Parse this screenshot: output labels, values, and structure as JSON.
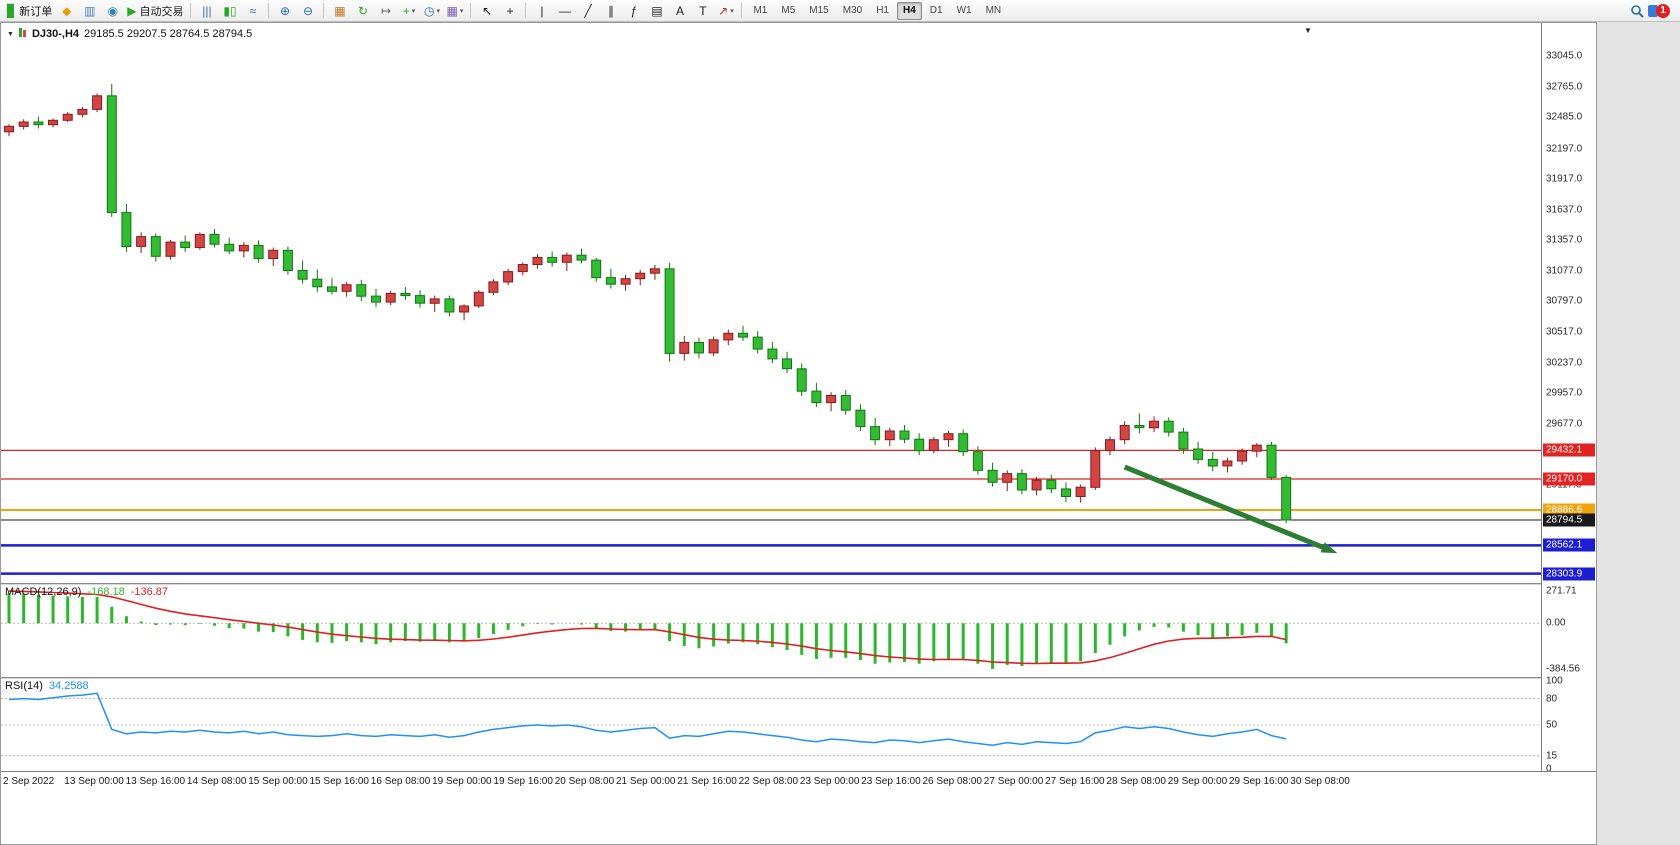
{
  "toolbar": {
    "items": [
      {
        "t": "btn",
        "name": "new-order-button",
        "icon": "new-order-icon",
        "glyph": "▊",
        "icolor": "#2aa52a",
        "label": "新订单"
      },
      {
        "t": "ico",
        "name": "compass-icon",
        "glyph": "◆",
        "icolor": "#e0a010"
      },
      {
        "t": "ico",
        "name": "market-watch-icon",
        "glyph": "▥",
        "icolor": "#4a7fc0"
      },
      {
        "t": "ico",
        "name": "community-icon",
        "glyph": "◉",
        "icolor": "#2e86c1"
      },
      {
        "t": "btn",
        "name": "autotrading-button",
        "icon": "autotrading-icon",
        "glyph": "▶",
        "icolor": "#2aa52a",
        "label": "自动交易"
      },
      {
        "t": "sep"
      },
      {
        "t": "ico",
        "name": "bar-chart-icon",
        "glyph": "|||",
        "icolor": "#3a6ea5"
      },
      {
        "t": "ico",
        "name": "candlestick-chart-icon",
        "glyph": "▮▯",
        "icolor": "#2aa52a"
      },
      {
        "t": "ico",
        "name": "line-chart-icon",
        "glyph": "≈",
        "icolor": "#3a6ea5"
      },
      {
        "t": "sep"
      },
      {
        "t": "ico",
        "name": "zoom-in-icon",
        "glyph": "⊕",
        "icolor": "#2e6da4"
      },
      {
        "t": "ico",
        "name": "zoom-out-icon",
        "glyph": "⊖",
        "icolor": "#2e6da4"
      },
      {
        "t": "sep"
      },
      {
        "t": "ico",
        "name": "tile-windows-icon",
        "glyph": "▦",
        "icolor": "#c07820"
      },
      {
        "t": "ico",
        "name": "autoscroll-icon",
        "glyph": "↻",
        "icolor": "#2aa52a"
      },
      {
        "t": "ico",
        "name": "chart-shift-icon",
        "glyph": "↦",
        "icolor": "#666666"
      },
      {
        "t": "dd",
        "name": "indicators-button",
        "glyph": "+",
        "icolor": "#2aa52a"
      },
      {
        "t": "dd",
        "name": "periods-button",
        "glyph": "◷",
        "icolor": "#2e6da4"
      },
      {
        "t": "dd",
        "name": "templates-button",
        "glyph": "▦",
        "icolor": "#7a5ab0"
      },
      {
        "t": "sep"
      },
      {
        "t": "ico",
        "name": "cursor-icon",
        "glyph": "↖",
        "icolor": "#222222"
      },
      {
        "t": "ico",
        "name": "crosshair-icon",
        "glyph": "+",
        "icolor": "#222222"
      },
      {
        "t": "sep"
      },
      {
        "t": "ico",
        "name": "vertical-line-icon",
        "glyph": "|",
        "icolor": "#222222"
      },
      {
        "t": "ico",
        "name": "horizontal-line-icon",
        "glyph": "—",
        "icolor": "#222222"
      },
      {
        "t": "ico",
        "name": "trendline-icon",
        "glyph": "╱",
        "icolor": "#222222"
      },
      {
        "t": "ico",
        "name": "equidistant-channel-icon",
        "glyph": "∥",
        "icolor": "#222222"
      },
      {
        "t": "ico",
        "name": "fibonacci-icon",
        "glyph": "ƒ",
        "icolor": "#222222"
      },
      {
        "t": "ico",
        "name": "cycle-lines-icon",
        "glyph": "▤",
        "icolor": "#222222"
      },
      {
        "t": "ico",
        "name": "text-icon",
        "glyph": "A",
        "icolor": "#222222"
      },
      {
        "t": "ico",
        "name": "text-label-icon",
        "glyph": "T",
        "icolor": "#222222"
      },
      {
        "t": "dd",
        "name": "arrows-button",
        "glyph": "↗",
        "icolor": "#c03030"
      },
      {
        "t": "sep"
      }
    ],
    "timeframes": [
      "M1",
      "M5",
      "M15",
      "M30",
      "H1",
      "H4",
      "D1",
      "W1",
      "MN"
    ],
    "active_timeframe": "H4",
    "badge": "1"
  },
  "chart": {
    "symbol_period": "DJ30-,H4",
    "ohlc_text": "29185.5 29207.5 28764.5 28794.5",
    "open": "29185.5",
    "high": "29207.5",
    "low": "28764.5",
    "close": "28794.5"
  },
  "macd": {
    "name": "MACD(12,26,9)",
    "value_main": "-168.18",
    "value_signal": "-136.87",
    "scale": [
      "271.71",
      "0.00",
      "-384.56"
    ]
  },
  "rsi": {
    "name": "RSI(14)",
    "value": "34.2588",
    "scale": [
      "100",
      "80",
      "50",
      "15",
      "0"
    ]
  },
  "price_axis_labels": [
    "33045.0",
    "32765.0",
    "32485.0",
    "32197.0",
    "31917.0",
    "31637.0",
    "31357.0",
    "31077.0",
    "30797.0",
    "30517.0",
    "30237.0",
    "29957.0",
    "29677.0",
    "29397.0",
    "29117.0"
  ],
  "date_labels": [
    "2 Sep 2022",
    "13 Sep 00:00",
    "13 Sep 16:00",
    "14 Sep 08:00",
    "15 Sep 00:00",
    "15 Sep 16:00",
    "16 Sep 08:00",
    "19 Sep 00:00",
    "19 Sep 16:00",
    "20 Sep 08:00",
    "21 Sep 00:00",
    "21 Sep 16:00",
    "22 Sep 08:00",
    "23 Sep 00:00",
    "23 Sep 16:00",
    "26 Sep 08:00",
    "27 Sep 00:00",
    "27 Sep 16:00",
    "28 Sep 08:00",
    "29 Sep 00:00",
    "29 Sep 16:00",
    "30 Sep 08:00"
  ],
  "colors": {
    "bull_fill": "#d24545",
    "bull_stroke": "#8c1a1a",
    "bear_fill": "#33bb33",
    "bear_stroke": "#117711",
    "macd_hist": "#29b829",
    "macd_signal": "#e02020",
    "rsi_line": "#1e90ff",
    "level_red": "#e32222",
    "level_orange": "#f0a30a",
    "level_blue": "#1d1dd4",
    "level_black": "#1a1a1a",
    "arrow_green": "#2e7d32"
  },
  "chart_data": {
    "type": "candlestick",
    "symbol": "DJ30-",
    "timeframe": "H4",
    "candles": [
      [
        32350,
        32420,
        32310,
        32400
      ],
      [
        32400,
        32465,
        32370,
        32440
      ],
      [
        32440,
        32490,
        32380,
        32415
      ],
      [
        32415,
        32470,
        32390,
        32455
      ],
      [
        32455,
        32530,
        32440,
        32510
      ],
      [
        32510,
        32580,
        32480,
        32555
      ],
      [
        32555,
        32700,
        32530,
        32680
      ],
      [
        32680,
        32790,
        31570,
        31610
      ],
      [
        31610,
        31690,
        31250,
        31300
      ],
      [
        31300,
        31430,
        31240,
        31390
      ],
      [
        31390,
        31420,
        31160,
        31210
      ],
      [
        31210,
        31360,
        31180,
        31340
      ],
      [
        31340,
        31400,
        31250,
        31290
      ],
      [
        31290,
        31430,
        31270,
        31410
      ],
      [
        31410,
        31460,
        31290,
        31320
      ],
      [
        31320,
        31380,
        31230,
        31260
      ],
      [
        31260,
        31340,
        31200,
        31310
      ],
      [
        31310,
        31355,
        31150,
        31190
      ],
      [
        31190,
        31290,
        31120,
        31265
      ],
      [
        31265,
        31300,
        31040,
        31080
      ],
      [
        31080,
        31170,
        30960,
        31000
      ],
      [
        31000,
        31090,
        30880,
        30930
      ],
      [
        30930,
        31010,
        30860,
        30890
      ],
      [
        30890,
        30975,
        30840,
        30950
      ],
      [
        30950,
        30995,
        30800,
        30845
      ],
      [
        30845,
        30910,
        30745,
        30790
      ],
      [
        30790,
        30895,
        30760,
        30870
      ],
      [
        30870,
        30930,
        30810,
        30850
      ],
      [
        30850,
        30900,
        30740,
        30780
      ],
      [
        30780,
        30850,
        30700,
        30820
      ],
      [
        30820,
        30850,
        30660,
        30700
      ],
      [
        30700,
        30770,
        30625,
        30755
      ],
      [
        30755,
        30900,
        30735,
        30880
      ],
      [
        30880,
        31000,
        30855,
        30975
      ],
      [
        30975,
        31095,
        30945,
        31070
      ],
      [
        31070,
        31155,
        31035,
        31135
      ],
      [
        31135,
        31230,
        31095,
        31200
      ],
      [
        31200,
        31255,
        31115,
        31155
      ],
      [
        31155,
        31245,
        31075,
        31220
      ],
      [
        31220,
        31280,
        31145,
        31175
      ],
      [
        31175,
        31195,
        30975,
        31015
      ],
      [
        31015,
        31095,
        30915,
        30955
      ],
      [
        30955,
        31040,
        30895,
        31005
      ],
      [
        31005,
        31085,
        30945,
        31055
      ],
      [
        31055,
        31130,
        30995,
        31095
      ],
      [
        31095,
        31150,
        30245,
        30320
      ],
      [
        30320,
        30480,
        30255,
        30420
      ],
      [
        30420,
        30465,
        30275,
        30325
      ],
      [
        30325,
        30475,
        30295,
        30445
      ],
      [
        30445,
        30540,
        30395,
        30505
      ],
      [
        30505,
        30575,
        30435,
        30470
      ],
      [
        30470,
        30525,
        30320,
        30360
      ],
      [
        30360,
        30425,
        30230,
        30270
      ],
      [
        30270,
        30335,
        30140,
        30180
      ],
      [
        30180,
        30230,
        29930,
        29975
      ],
      [
        29975,
        30050,
        29830,
        29870
      ],
      [
        29870,
        29965,
        29790,
        29935
      ],
      [
        29935,
        29985,
        29760,
        29800
      ],
      [
        29800,
        29855,
        29610,
        29650
      ],
      [
        29650,
        29730,
        29480,
        29530
      ],
      [
        29530,
        29640,
        29470,
        29610
      ],
      [
        29610,
        29665,
        29500,
        29535
      ],
      [
        29535,
        29590,
        29390,
        29430
      ],
      [
        29430,
        29555,
        29405,
        29530
      ],
      [
        29530,
        29610,
        29465,
        29585
      ],
      [
        29585,
        29625,
        29380,
        29420
      ],
      [
        29420,
        29470,
        29210,
        29250
      ],
      [
        29250,
        29320,
        29100,
        29140
      ],
      [
        29140,
        29250,
        29060,
        29220
      ],
      [
        29220,
        29260,
        29030,
        29070
      ],
      [
        29070,
        29190,
        29020,
        29160
      ],
      [
        29160,
        29210,
        29040,
        29080
      ],
      [
        29080,
        29140,
        28960,
        29010
      ],
      [
        29010,
        29120,
        28955,
        29095
      ],
      [
        29095,
        29460,
        29070,
        29430
      ],
      [
        29430,
        29560,
        29390,
        29530
      ],
      [
        29530,
        29700,
        29490,
        29660
      ],
      [
        29660,
        29770,
        29590,
        29640
      ],
      [
        29640,
        29745,
        29600,
        29700
      ],
      [
        29700,
        29735,
        29560,
        29600
      ],
      [
        29600,
        29640,
        29400,
        29445
      ],
      [
        29445,
        29510,
        29310,
        29350
      ],
      [
        29350,
        29420,
        29240,
        29290
      ],
      [
        29290,
        29365,
        29230,
        29335
      ],
      [
        29335,
        29450,
        29300,
        29425
      ],
      [
        29425,
        29500,
        29370,
        29480
      ],
      [
        29480,
        29510,
        29160,
        29185
      ],
      [
        29185,
        29207.5,
        28764.5,
        28794.5
      ]
    ],
    "levels": [
      {
        "price": 29432.1,
        "label": "29432.1",
        "color": "#e32222",
        "width": 1.2
      },
      {
        "price": 29170.0,
        "label": "29170.0",
        "color": "#e32222",
        "width": 1.2
      },
      {
        "price": 28886.6,
        "label": "28886.6",
        "color": "#f0a30a",
        "width": 2
      },
      {
        "price": 28794.5,
        "label": "28794.5",
        "color": "#1a1a1a",
        "width": 1
      },
      {
        "price": 28562.1,
        "label": "28562.1",
        "color": "#1d1dd4",
        "width": 2.5
      },
      {
        "price": 28303.9,
        "label": "28303.9",
        "color": "#1d1dd4",
        "width": 2.5
      }
    ],
    "arrow": {
      "from_bar": 76,
      "from_price": 29280,
      "to_bar": 90.5,
      "to_price": 28490,
      "color": "#2e7d32",
      "width": 5
    },
    "macd_histogram": [
      255,
      248,
      240,
      232,
      226,
      222,
      220,
      140,
      60,
      15,
      -15,
      -10,
      -15,
      -5,
      -20,
      -40,
      -45,
      -70,
      -75,
      -110,
      -140,
      -160,
      -165,
      -150,
      -160,
      -175,
      -160,
      -150,
      -155,
      -145,
      -160,
      -155,
      -125,
      -90,
      -55,
      -25,
      -5,
      -10,
      0,
      -10,
      -40,
      -65,
      -70,
      -60,
      -50,
      -150,
      -190,
      -210,
      -195,
      -170,
      -160,
      -175,
      -200,
      -225,
      -265,
      -300,
      -290,
      -290,
      -310,
      -340,
      -330,
      -325,
      -340,
      -320,
      -300,
      -310,
      -340,
      -384,
      -350,
      -360,
      -340,
      -330,
      -335,
      -320,
      -250,
      -180,
      -110,
      -60,
      -30,
      -35,
      -70,
      -100,
      -120,
      -110,
      -100,
      -80,
      -110,
      -168.18
    ],
    "macd_signal": [
      271,
      268,
      264,
      259,
      254,
      248,
      242,
      222,
      192,
      159,
      127,
      101,
      79,
      63,
      47,
      30,
      16,
      0,
      -14,
      -32,
      -53,
      -74,
      -92,
      -104,
      -115,
      -127,
      -134,
      -137,
      -141,
      -142,
      -145,
      -147,
      -143,
      -132,
      -117,
      -99,
      -80,
      -66,
      -53,
      -44,
      -43,
      -48,
      -52,
      -54,
      -53,
      -72,
      -96,
      -119,
      -134,
      -141,
      -145,
      -151,
      -161,
      -174,
      -192,
      -214,
      -229,
      -241,
      -255,
      -272,
      -284,
      -292,
      -301,
      -305,
      -304,
      -305,
      -312,
      -326,
      -331,
      -337,
      -338,
      -336,
      -336,
      -333,
      -316,
      -289,
      -253,
      -214,
      -177,
      -149,
      -133,
      -126,
      -125,
      -122,
      -118,
      -110,
      -110,
      -136.87
    ],
    "macd_range": {
      "max": 271.71,
      "min": -384.56
    },
    "rsi_values": [
      79,
      80,
      79,
      81,
      83,
      84,
      86,
      45,
      40,
      42,
      41,
      43,
      42,
      44,
      42,
      41,
      43,
      40,
      42,
      39,
      38,
      37,
      38,
      40,
      38,
      37,
      39,
      38,
      37,
      39,
      36,
      38,
      42,
      45,
      47,
      49,
      50,
      49,
      50,
      48,
      44,
      42,
      44,
      46,
      47,
      35,
      38,
      37,
      40,
      43,
      42,
      40,
      38,
      36,
      33,
      31,
      34,
      33,
      31,
      30,
      33,
      32,
      30,
      32,
      34,
      31,
      29,
      27,
      30,
      28,
      31,
      30,
      29,
      31,
      41,
      44,
      48,
      46,
      48,
      46,
      42,
      39,
      37,
      40,
      42,
      45,
      38,
      34.26
    ],
    "rsi_levels": [
      80,
      50,
      15
    ],
    "rsi_range": [
      0,
      100
    ],
    "price_range": {
      "min": 28218,
      "max": 33328
    }
  }
}
